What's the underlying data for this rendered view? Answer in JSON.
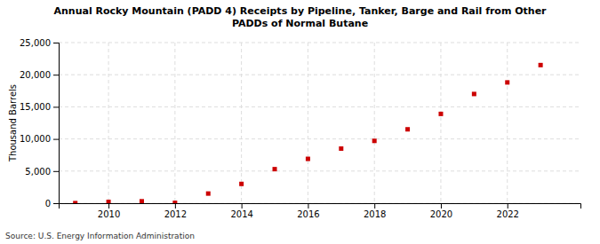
{
  "chart_data": {
    "type": "scatter",
    "title": "Annual Rocky Mountain (PADD 4) Receipts by Pipeline, Tanker, Barge and Rail from Other\nPADDs of Normal Butane",
    "ylabel": "Thousand Barrels",
    "annotations": [
      "Source: U.S. Energy Information Administration"
    ],
    "x": [
      2009,
      2010,
      2011,
      2012,
      2013,
      2014,
      2015,
      2016,
      2017,
      2018,
      2019,
      2020,
      2021,
      2022,
      2023
    ],
    "values": [
      10,
      200,
      300,
      50,
      1500,
      3000,
      5300,
      6900,
      8500,
      9700,
      11500,
      13900,
      17000,
      18800,
      21500
    ],
    "color": "#cc0000",
    "marker": "square",
    "xlim": [
      2008.5,
      2024.2
    ],
    "xticks": [
      2010,
      2012,
      2014,
      2016,
      2018,
      2020,
      2022
    ],
    "ylim": [
      0,
      25000
    ],
    "yticks": [
      0,
      {
        "value": 5000,
        "label": "5,000"
      },
      {
        "value": 10000,
        "label": "10,000"
      },
      {
        "value": 15000,
        "label": "15,000"
      },
      {
        "value": 20000,
        "label": "20,000"
      },
      {
        "value": 25000,
        "label": "25,000"
      }
    ],
    "grid": true
  }
}
